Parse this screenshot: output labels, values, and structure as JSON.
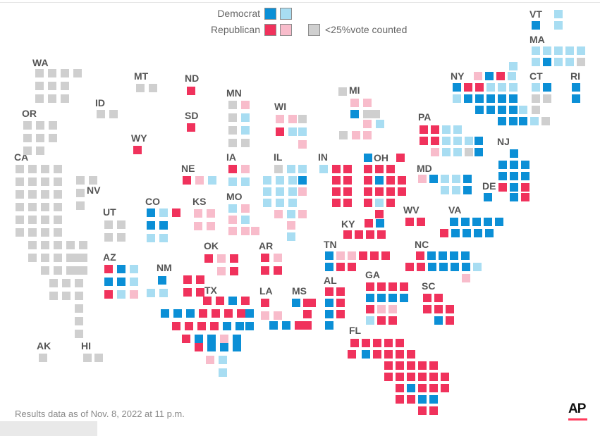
{
  "colors": {
    "dem_win": "#0b8fd6",
    "dem_lead": "#a8ddf2",
    "rep_win": "#f0325c",
    "rep_lead": "#f8bccb",
    "low_count": "#cfcfcf",
    "label": "#555555",
    "logo_bar": "#ff3b5c"
  },
  "legend": {
    "democrat_label": "Democrat",
    "republican_label": "Republican",
    "low_count_label": "<25%vote counted"
  },
  "footnote": "Results data as of Nov. 8, 2022 at 11 p.m.",
  "logo_text": "AP",
  "state_labels": [
    "VT",
    "MA",
    "NY",
    "CT",
    "RI",
    "WA",
    "MT",
    "ND",
    "MN",
    "WI",
    "MI",
    "ID",
    "OR",
    "SD",
    "WY",
    "PA",
    "NJ",
    "CA",
    "IA",
    "IL",
    "IN",
    "OH",
    "NE",
    "NV",
    "MD",
    "DE",
    "CO",
    "KS",
    "MO",
    "UT",
    "WV",
    "VA",
    "KY",
    "OK",
    "AR",
    "TN",
    "NC",
    "AZ",
    "NM",
    "GA",
    "AL",
    "SC",
    "TX",
    "LA",
    "MS",
    "FL",
    "AK",
    "HI"
  ],
  "map_tiles": {
    "WA": [
      "g",
      "g",
      "g",
      "g",
      "g",
      "g",
      "g",
      "g",
      "g",
      "g"
    ],
    "OR": [
      "g",
      "g",
      "g",
      "g",
      "g",
      "g",
      "g",
      "g"
    ],
    "CA": [
      "g",
      "g",
      "g",
      "g",
      "g",
      "g",
      "g",
      "g",
      "g",
      "g",
      "g",
      "g",
      "g",
      "g",
      "g",
      "g",
      "g",
      "g",
      "g",
      "g",
      "g",
      "g",
      "g",
      "g",
      "g",
      "g",
      "g",
      "g",
      "g",
      "g",
      "g",
      "g",
      "g",
      "g",
      "g",
      "g",
      "g",
      "g",
      "g",
      "g",
      "g",
      "g",
      "g",
      "g",
      "g",
      "g",
      "g",
      "g",
      "g",
      "g",
      "g"
    ],
    "NV": [
      "g",
      "g",
      "g",
      "g"
    ],
    "ID": [
      "g",
      "g"
    ],
    "MT": [
      "g",
      "g"
    ],
    "UT": [
      "g",
      "g",
      "g",
      "g"
    ],
    "WY": [
      "r"
    ],
    "AZ": [
      "r",
      "b",
      "l",
      "b",
      "b",
      "r",
      "l",
      "p",
      "l"
    ],
    "NM": [
      "b",
      "l",
      "l"
    ],
    "CO": [
      "b",
      "l",
      "r",
      "b",
      "b",
      "l",
      "l"
    ],
    "ND": [
      "r"
    ],
    "SD": [
      "r"
    ],
    "NE": [
      "r",
      "p",
      "l"
    ],
    "KS": [
      "p",
      "p",
      "p",
      "p"
    ],
    "OK": [
      "r",
      "p",
      "r",
      "p",
      "r"
    ],
    "TX": [
      "r",
      "r",
      "r",
      "r",
      "r",
      "r",
      "b",
      "r",
      "b",
      "b",
      "b",
      "r",
      "r",
      "r",
      "r",
      "r",
      "r",
      "r",
      "r",
      "b",
      "b",
      "r",
      "b",
      "b",
      "p",
      "b",
      "r",
      "b",
      "b",
      "b",
      "b",
      "b",
      "p",
      "l",
      "l"
    ],
    "MN": [
      "g",
      "p",
      "g",
      "l",
      "g",
      "l",
      "g",
      "g"
    ],
    "IA": [
      "r",
      "p",
      "l",
      "l"
    ],
    "MO": [
      "l",
      "p",
      "p",
      "l",
      "p",
      "p",
      "p"
    ],
    "AR": [
      "r",
      "p",
      "r",
      "r"
    ],
    "LA": [
      "r",
      "p",
      "p",
      "b",
      "b",
      "r",
      "r"
    ],
    "WI": [
      "p",
      "p",
      "g",
      "r",
      "l",
      "l",
      "p"
    ],
    "IL": [
      "g",
      "l",
      "l",
      "l",
      "l",
      "l",
      "b",
      "l",
      "l",
      "l",
      "p",
      "l",
      "l",
      "l",
      "p",
      "l",
      "p",
      "p",
      "l"
    ],
    "MI": [
      "g",
      "p",
      "p",
      "b",
      "g",
      "g",
      "p",
      "l",
      "g",
      "p",
      "p"
    ],
    "IN": [
      "l",
      "r",
      "r",
      "r",
      "r",
      "r",
      "r",
      "r",
      "r"
    ],
    "OH": [
      "b",
      "r",
      "r",
      "r",
      "r",
      "r",
      "b",
      "r",
      "r",
      "r",
      "r",
      "r",
      "r",
      "l",
      "r",
      "r",
      "r"
    ],
    "KY": [
      "b",
      "r",
      "r",
      "r",
      "r",
      "r"
    ],
    "WV": [
      "r",
      "r"
    ],
    "TN": [
      "b",
      "p",
      "p",
      "r",
      "r",
      "r",
      "b",
      "r",
      "r"
    ],
    "MS": [
      "b",
      "r",
      "r",
      "r"
    ],
    "AL": [
      "r",
      "r",
      "b",
      "r",
      "b",
      "r",
      "b"
    ],
    "GA": [
      "r",
      "r",
      "r",
      "r",
      "b",
      "b",
      "b",
      "b",
      "p",
      "p",
      "l",
      "r",
      "r",
      "r"
    ],
    "FL": [
      "r",
      "r",
      "r",
      "r",
      "r",
      "r",
      "r",
      "r",
      "r",
      "r",
      "r",
      "r",
      "r",
      "r",
      "r",
      "b",
      "r",
      "r",
      "r",
      "r",
      "b",
      "b",
      "r",
      "r",
      "b",
      "r",
      "r",
      "r",
      "r",
      "r",
      "r",
      "r",
      "r"
    ],
    "SC": [
      "r",
      "r",
      "r",
      "r",
      "r",
      "b",
      "r"
    ],
    "NC": [
      "r",
      "b",
      "b",
      "b",
      "b",
      "r",
      "r",
      "b",
      "b",
      "b",
      "b",
      "l",
      "p"
    ],
    "VA": [
      "b",
      "b",
      "b",
      "b",
      "r",
      "b",
      "b",
      "b",
      "b",
      "b"
    ],
    "PA": [
      "r",
      "r",
      "l",
      "l",
      "r",
      "r",
      "l",
      "l",
      "l",
      "b",
      "p",
      "l",
      "l",
      "g",
      "b"
    ],
    "MD": [
      "p",
      "b",
      "l",
      "l",
      "b",
      "l",
      "l",
      "b"
    ],
    "DE": [
      "b"
    ],
    "NJ": [
      "b",
      "b",
      "b",
      "b",
      "b",
      "b",
      "b",
      "b",
      "r",
      "b",
      "r",
      "r"
    ],
    "NY": [
      "p",
      "b",
      "r",
      "l",
      "b",
      "r",
      "r",
      "l",
      "l",
      "l",
      "l",
      "b",
      "b",
      "b",
      "b",
      "b",
      "b",
      "b",
      "b",
      "b",
      "b",
      "b",
      "b",
      "b",
      "l",
      "l",
      "l",
      "g",
      "g"
    ],
    "CT": [
      "l",
      "b",
      "g",
      "g"
    ],
    "RI": [
      "b",
      "b"
    ],
    "VT": [
      "b",
      "l"
    ],
    "MA": [
      "l",
      "l",
      "l",
      "l",
      "l",
      "b",
      "l",
      "l",
      "g",
      "l",
      "l"
    ],
    "AK": [
      "g"
    ],
    "HI": [
      "g",
      "g"
    ]
  }
}
